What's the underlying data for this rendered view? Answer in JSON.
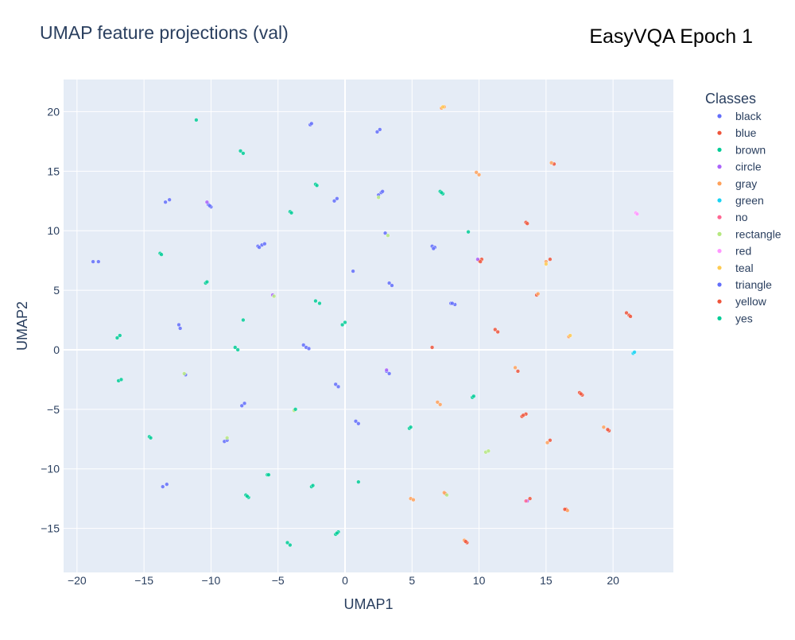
{
  "chart_data": {
    "type": "scatter",
    "title": "UMAP feature projections (val)",
    "annotation": "EasyVQA Epoch 1",
    "xlabel": "UMAP1",
    "ylabel": "UMAP2",
    "xlim": [
      -21,
      24.5
    ],
    "ylim": [
      -18.7,
      22.7
    ],
    "xticks": [
      -20,
      -15,
      -10,
      -5,
      0,
      5,
      10,
      15,
      20
    ],
    "yticks": [
      -15,
      -10,
      -5,
      0,
      5,
      10,
      15,
      20
    ],
    "grid": true,
    "legend": {
      "title": "Classes",
      "position": "right"
    },
    "series": [
      {
        "name": "black",
        "color": "#636efa",
        "points": [
          [
            -18.8,
            7.4
          ],
          [
            -18.4,
            7.4
          ],
          [
            -13.4,
            12.4
          ],
          [
            -13.1,
            12.6
          ],
          [
            -12.4,
            2.1
          ],
          [
            -12.3,
            1.8
          ],
          [
            -11.9,
            -2.1
          ],
          [
            -10.2,
            12.2
          ],
          [
            -10.0,
            12.0
          ],
          [
            -9.0,
            -7.7
          ],
          [
            -8.8,
            -7.6
          ],
          [
            -7.7,
            -4.7
          ],
          [
            -7.5,
            -4.5
          ],
          [
            -6.5,
            8.7
          ],
          [
            -6.2,
            8.8
          ],
          [
            -6.0,
            8.9
          ],
          [
            -3.1,
            0.4
          ],
          [
            -2.9,
            0.2
          ],
          [
            -2.7,
            0.1
          ],
          [
            -2.6,
            18.9
          ],
          [
            -2.5,
            19.0
          ],
          [
            -0.8,
            12.5
          ],
          [
            -0.6,
            12.7
          ],
          [
            -0.7,
            -2.9
          ],
          [
            -0.5,
            -3.1
          ],
          [
            0.6,
            6.6
          ],
          [
            0.8,
            -6.0
          ],
          [
            1.0,
            -6.2
          ],
          [
            2.4,
            18.3
          ],
          [
            2.6,
            18.5
          ],
          [
            2.5,
            13.0
          ],
          [
            2.7,
            13.2
          ],
          [
            3.0,
            9.8
          ],
          [
            3.3,
            5.6
          ],
          [
            3.5,
            5.4
          ],
          [
            3.1,
            -1.8
          ],
          [
            3.3,
            -2.0
          ],
          [
            6.5,
            8.7
          ],
          [
            6.7,
            8.6
          ],
          [
            7.9,
            3.9
          ],
          [
            8.2,
            3.8
          ],
          [
            -13.6,
            -11.5
          ],
          [
            -13.3,
            -11.3
          ]
        ]
      },
      {
        "name": "blue",
        "color": "#ef553b",
        "points": [
          [
            6.5,
            0.2
          ],
          [
            10.0,
            7.5
          ],
          [
            10.2,
            7.6
          ],
          [
            11.2,
            1.7
          ],
          [
            11.4,
            1.5
          ],
          [
            13.5,
            10.7
          ],
          [
            13.2,
            -5.6
          ],
          [
            13.5,
            -5.4
          ],
          [
            15.6,
            15.6
          ],
          [
            15.3,
            7.6
          ],
          [
            14.3,
            4.6
          ],
          [
            17.5,
            -3.6
          ],
          [
            17.7,
            -3.8
          ],
          [
            19.7,
            -6.8
          ],
          [
            21.0,
            3.1
          ],
          [
            21.2,
            2.9
          ],
          [
            13.8,
            -12.5
          ],
          [
            16.5,
            -13.4
          ],
          [
            9.1,
            -16.2
          ],
          [
            7.5,
            -12.1
          ],
          [
            15.3,
            -7.6
          ],
          [
            12.9,
            -1.8
          ]
        ]
      },
      {
        "name": "brown",
        "color": "#00cc96",
        "points": [
          [
            7.1,
            13.3
          ],
          [
            7.3,
            13.1
          ],
          [
            9.2,
            9.9
          ],
          [
            9.5,
            -4.0
          ],
          [
            4.8,
            -6.6
          ],
          [
            1.0,
            -11.1
          ],
          [
            -0.7,
            -15.5
          ],
          [
            -0.5,
            -15.3
          ],
          [
            -2.5,
            -11.5
          ],
          [
            -4.3,
            -16.2
          ],
          [
            -4.1,
            -16.4
          ],
          [
            -5.8,
            -10.5
          ],
          [
            -7.4,
            -12.2
          ],
          [
            -7.2,
            -12.4
          ],
          [
            -14.6,
            -7.3
          ],
          [
            -10.4,
            5.6
          ],
          [
            -11.1,
            19.3
          ]
        ]
      },
      {
        "name": "circle",
        "color": "#ab63fa",
        "points": [
          [
            -10.3,
            12.4
          ],
          [
            -5.4,
            4.6
          ],
          [
            3.1,
            -1.7
          ],
          [
            9.9,
            7.6
          ],
          [
            13.6,
            -12.7
          ]
        ]
      },
      {
        "name": "gray",
        "color": "#ffa15a",
        "points": [
          [
            7.2,
            20.3
          ],
          [
            7.4,
            20.4
          ],
          [
            9.8,
            14.9
          ],
          [
            10.0,
            14.7
          ],
          [
            15.4,
            15.7
          ],
          [
            15.0,
            7.4
          ],
          [
            14.4,
            4.7
          ],
          [
            6.9,
            -4.4
          ],
          [
            7.1,
            -4.6
          ],
          [
            12.7,
            -1.5
          ],
          [
            15.1,
            -7.8
          ],
          [
            16.6,
            -13.5
          ],
          [
            19.3,
            -6.5
          ],
          [
            4.9,
            -12.5
          ],
          [
            5.1,
            -12.6
          ],
          [
            8.9,
            -16.0
          ],
          [
            7.4,
            -12.0
          ],
          [
            16.7,
            1.1
          ]
        ]
      },
      {
        "name": "green",
        "color": "#19d3f3",
        "points": [
          [
            21.5,
            -0.3
          ],
          [
            21.6,
            -0.2
          ]
        ]
      },
      {
        "name": "no",
        "color": "#ff6692",
        "points": [
          [
            13.5,
            -12.7
          ]
        ]
      },
      {
        "name": "rectangle",
        "color": "#b6e880",
        "points": [
          [
            3.2,
            9.6
          ],
          [
            2.5,
            12.8
          ],
          [
            -8.8,
            -7.4
          ],
          [
            -12.0,
            -2.0
          ],
          [
            -5.3,
            4.5
          ],
          [
            10.5,
            -8.6
          ],
          [
            10.7,
            -8.5
          ],
          [
            7.6,
            -12.2
          ],
          [
            -3.8,
            -5.1
          ]
        ]
      },
      {
        "name": "red",
        "color": "#ff97ff",
        "points": [
          [
            21.7,
            11.5
          ],
          [
            21.8,
            11.4
          ]
        ]
      },
      {
        "name": "teal",
        "color": "#fecb52",
        "points": [
          [
            7.3,
            20.4
          ],
          [
            16.8,
            1.2
          ],
          [
            15.0,
            7.2
          ]
        ]
      },
      {
        "name": "triangle",
        "color": "#636efa",
        "points": [
          [
            -10.1,
            12.1
          ],
          [
            -6.4,
            8.6
          ],
          [
            2.8,
            13.3
          ],
          [
            6.6,
            8.5
          ],
          [
            8.0,
            3.9
          ]
        ]
      },
      {
        "name": "yellow",
        "color": "#ef553b",
        "points": [
          [
            10.1,
            7.4
          ],
          [
            13.6,
            10.6
          ],
          [
            13.3,
            -5.5
          ],
          [
            21.3,
            2.8
          ],
          [
            17.6,
            -3.7
          ],
          [
            19.6,
            -6.7
          ],
          [
            9.0,
            -16.1
          ],
          [
            16.4,
            -13.4
          ]
        ]
      },
      {
        "name": "yes",
        "color": "#00cc96",
        "points": [
          [
            -7.8,
            16.7
          ],
          [
            -7.6,
            16.5
          ],
          [
            -13.8,
            8.1
          ],
          [
            -13.7,
            8.0
          ],
          [
            -4.1,
            11.6
          ],
          [
            -4.0,
            11.5
          ],
          [
            -2.2,
            13.9
          ],
          [
            -2.1,
            13.8
          ],
          [
            -7.6,
            2.5
          ],
          [
            -8.2,
            0.2
          ],
          [
            -8.0,
            0.0
          ],
          [
            -2.2,
            4.1
          ],
          [
            -1.9,
            3.9
          ],
          [
            -0.2,
            2.1
          ],
          [
            0.0,
            2.3
          ],
          [
            -17.0,
            1.0
          ],
          [
            -16.8,
            1.2
          ],
          [
            -16.9,
            -2.6
          ],
          [
            -16.7,
            -2.5
          ],
          [
            -3.7,
            -5.0
          ],
          [
            -7.3,
            -12.3
          ],
          [
            -0.6,
            -15.4
          ],
          [
            -2.4,
            -11.4
          ],
          [
            -5.7,
            -10.5
          ],
          [
            7.2,
            13.2
          ],
          [
            -14.5,
            -7.4
          ],
          [
            -10.3,
            5.7
          ],
          [
            4.9,
            -6.5
          ],
          [
            9.6,
            -3.9
          ]
        ]
      }
    ]
  }
}
